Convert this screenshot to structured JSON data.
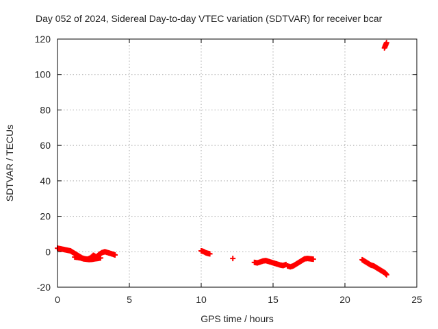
{
  "chart_data": {
    "type": "scatter",
    "title": "Day 052 of 2024, Sidereal Day-to-day VTEC variation (SDTVAR) for receiver bcar",
    "xlabel": "GPS time / hours",
    "ylabel": "SDTVAR / TECUs",
    "xlim": [
      0,
      25
    ],
    "ylim": [
      -20,
      120
    ],
    "xticks": [
      0,
      5,
      10,
      15,
      20,
      25
    ],
    "yticks": [
      -20,
      0,
      20,
      40,
      60,
      80,
      100,
      120
    ],
    "grid": true,
    "marker": "+",
    "color": "#ff0000",
    "segments": [
      {
        "x": [
          0.0,
          0.3,
          0.6,
          0.9,
          1.1,
          1.3,
          1.5,
          1.7,
          1.9,
          2.1,
          2.3,
          2.5,
          2.7,
          2.9,
          3.1,
          3.3,
          3.5,
          3.7,
          3.9,
          4.0
        ],
        "y": [
          2.0,
          1.5,
          1.0,
          0.5,
          -0.5,
          -1.5,
          -2.5,
          -3.5,
          -4.0,
          -4.2,
          -3.5,
          -2.0,
          -3.0,
          -1.5,
          -0.5,
          0.0,
          -0.5,
          -1.0,
          -1.5,
          -1.8
        ]
      },
      {
        "x": [
          1.2,
          1.4,
          1.6,
          1.8,
          2.0,
          2.2,
          2.4,
          2.6,
          2.8,
          3.0
        ],
        "y": [
          -3.0,
          -3.2,
          -3.5,
          -4.0,
          -4.2,
          -4.4,
          -4.3,
          -4.0,
          -3.8,
          -3.5
        ]
      },
      {
        "x": [
          10.0,
          10.1,
          10.2,
          10.3,
          10.4,
          10.5,
          10.6
        ],
        "y": [
          0.5,
          0.3,
          0.0,
          -0.5,
          -0.8,
          -1.0,
          -1.2
        ]
      },
      {
        "x": [
          12.2
        ],
        "y": [
          -3.8
        ]
      },
      {
        "x": [
          13.7,
          13.9,
          14.1,
          14.3,
          14.5,
          14.7,
          14.9,
          15.1,
          15.3,
          15.5,
          15.7,
          15.9
        ],
        "y": [
          -6.0,
          -6.3,
          -5.8,
          -5.2,
          -5.0,
          -5.5,
          -6.0,
          -6.5,
          -7.0,
          -7.5,
          -7.8,
          -7.2
        ]
      },
      {
        "x": [
          16.0,
          16.2,
          16.4,
          16.6,
          16.8,
          17.0,
          17.2,
          17.4,
          17.6,
          17.8
        ],
        "y": [
          -8.0,
          -8.5,
          -8.0,
          -7.0,
          -6.0,
          -5.0,
          -4.0,
          -3.8,
          -4.0,
          -4.2
        ]
      },
      {
        "x": [
          21.2,
          21.4,
          21.6,
          21.8,
          22.0,
          22.2,
          22.4,
          22.6,
          22.8,
          22.9
        ],
        "y": [
          -4.5,
          -5.5,
          -6.5,
          -7.5,
          -8.0,
          -9.0,
          -10.0,
          -11.0,
          -12.0,
          -13.0
        ]
      },
      {
        "x": [
          22.75,
          22.8,
          22.85,
          22.9
        ],
        "y": [
          115.0,
          116.0,
          117.0,
          118.0
        ]
      }
    ]
  }
}
